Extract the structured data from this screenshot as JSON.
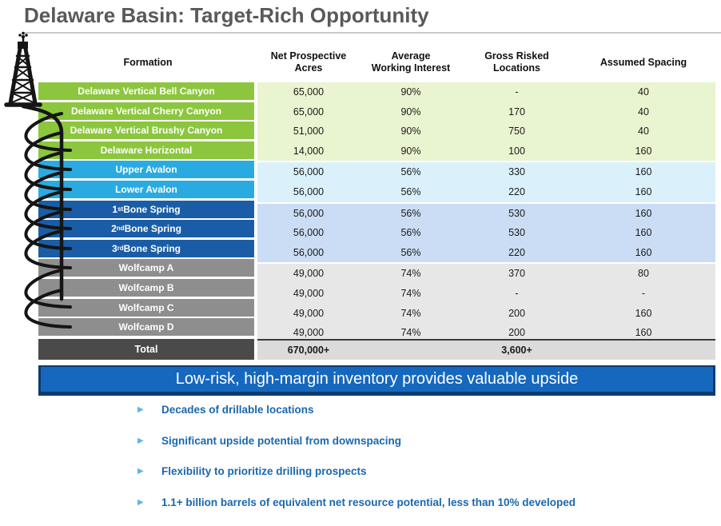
{
  "title": "Delaware Basin: Target-Rich Opportunity",
  "colors": {
    "title": "#595959",
    "green_label": "#8CC63E",
    "green_data": "#E9F4D0",
    "cyan_label": "#29ABE2",
    "cyan_data": "#DAF1FB",
    "navy_label": "#1A5DA6",
    "navy_data": "#CBDDF4",
    "gray_label": "#8E8E8E",
    "gray_data": "#E7E7E7",
    "total_label_bg": "#4A4A4A",
    "total_data_bg": "#DBDBDB",
    "banner_bg": "#1568BE",
    "banner_border": "#0D3B6E",
    "bullet_text": "#1A67AF",
    "bullet_marker": "#62B5E5"
  },
  "table": {
    "columns": [
      {
        "lines": [
          "Formation"
        ]
      },
      {
        "lines": [
          "Net Prospective",
          "Acres"
        ]
      },
      {
        "lines": [
          "Average",
          "Working Interest"
        ]
      },
      {
        "lines": [
          "Gross Risked",
          "Locations"
        ]
      },
      {
        "lines": [
          "Assumed Spacing"
        ]
      }
    ],
    "groups": [
      {
        "theme": "green",
        "rows": [
          {
            "formation": "Delaware Vertical Bell Canyon",
            "acres": "65,000",
            "wi": "90%",
            "locations": "-",
            "spacing": "40"
          },
          {
            "formation": "Delaware Vertical Cherry Canyon",
            "acres": "65,000",
            "wi": "90%",
            "locations": "170",
            "spacing": "40"
          },
          {
            "formation": "Delaware Vertical Brushy Canyon",
            "acres": "51,000",
            "wi": "90%",
            "locations": "750",
            "spacing": "40"
          },
          {
            "formation": "Delaware Horizontal",
            "acres": "14,000",
            "wi": "90%",
            "locations": "100",
            "spacing": "160"
          }
        ]
      },
      {
        "theme": "cyan",
        "rows": [
          {
            "formation": "Upper Avalon",
            "acres": "56,000",
            "wi": "56%",
            "locations": "330",
            "spacing": "160"
          },
          {
            "formation": "Lower Avalon",
            "acres": "56,000",
            "wi": "56%",
            "locations": "220",
            "spacing": "160"
          }
        ]
      },
      {
        "theme": "navy",
        "rows": [
          {
            "formation_pre": "1",
            "formation_sup": "st",
            "formation_post": " Bone Spring",
            "acres": "56,000",
            "wi": "56%",
            "locations": "530",
            "spacing": "160"
          },
          {
            "formation_pre": "2",
            "formation_sup": "nd",
            "formation_post": " Bone Spring",
            "acres": "56,000",
            "wi": "56%",
            "locations": "530",
            "spacing": "160"
          },
          {
            "formation_pre": "3",
            "formation_sup": "rd",
            "formation_post": " Bone Spring",
            "acres": "56,000",
            "wi": "56%",
            "locations": "220",
            "spacing": "160"
          }
        ]
      },
      {
        "theme": "gray",
        "rows": [
          {
            "formation": "Wolfcamp A",
            "acres": "49,000",
            "wi": "74%",
            "locations": "370",
            "spacing": "80"
          },
          {
            "formation": "Wolfcamp B",
            "acres": "49,000",
            "wi": "74%",
            "locations": "-",
            "spacing": "-"
          },
          {
            "formation": "Wolfcamp C",
            "acres": "49,000",
            "wi": "74%",
            "locations": "200",
            "spacing": "160"
          },
          {
            "formation": "Wolfcamp D",
            "acres": "49,000",
            "wi": "74%",
            "locations": "200",
            "spacing": "160"
          }
        ]
      }
    ],
    "total": {
      "label": "Total",
      "acres": "670,000+",
      "wi": "",
      "locations": "3,600+",
      "spacing": ""
    }
  },
  "banner": {
    "text": "Low-risk, high-margin inventory provides valuable upside"
  },
  "bullets": {
    "marker": "▶",
    "items": [
      "Decades of drillable locations",
      "Significant upside potential from downspacing",
      "Flexibility to prioritize drilling prospects",
      "1.1+ billion barrels of equivalent net resource potential, less than 10% developed"
    ]
  },
  "icons": {
    "derrick": "oil derrick with wellbore laterals"
  }
}
